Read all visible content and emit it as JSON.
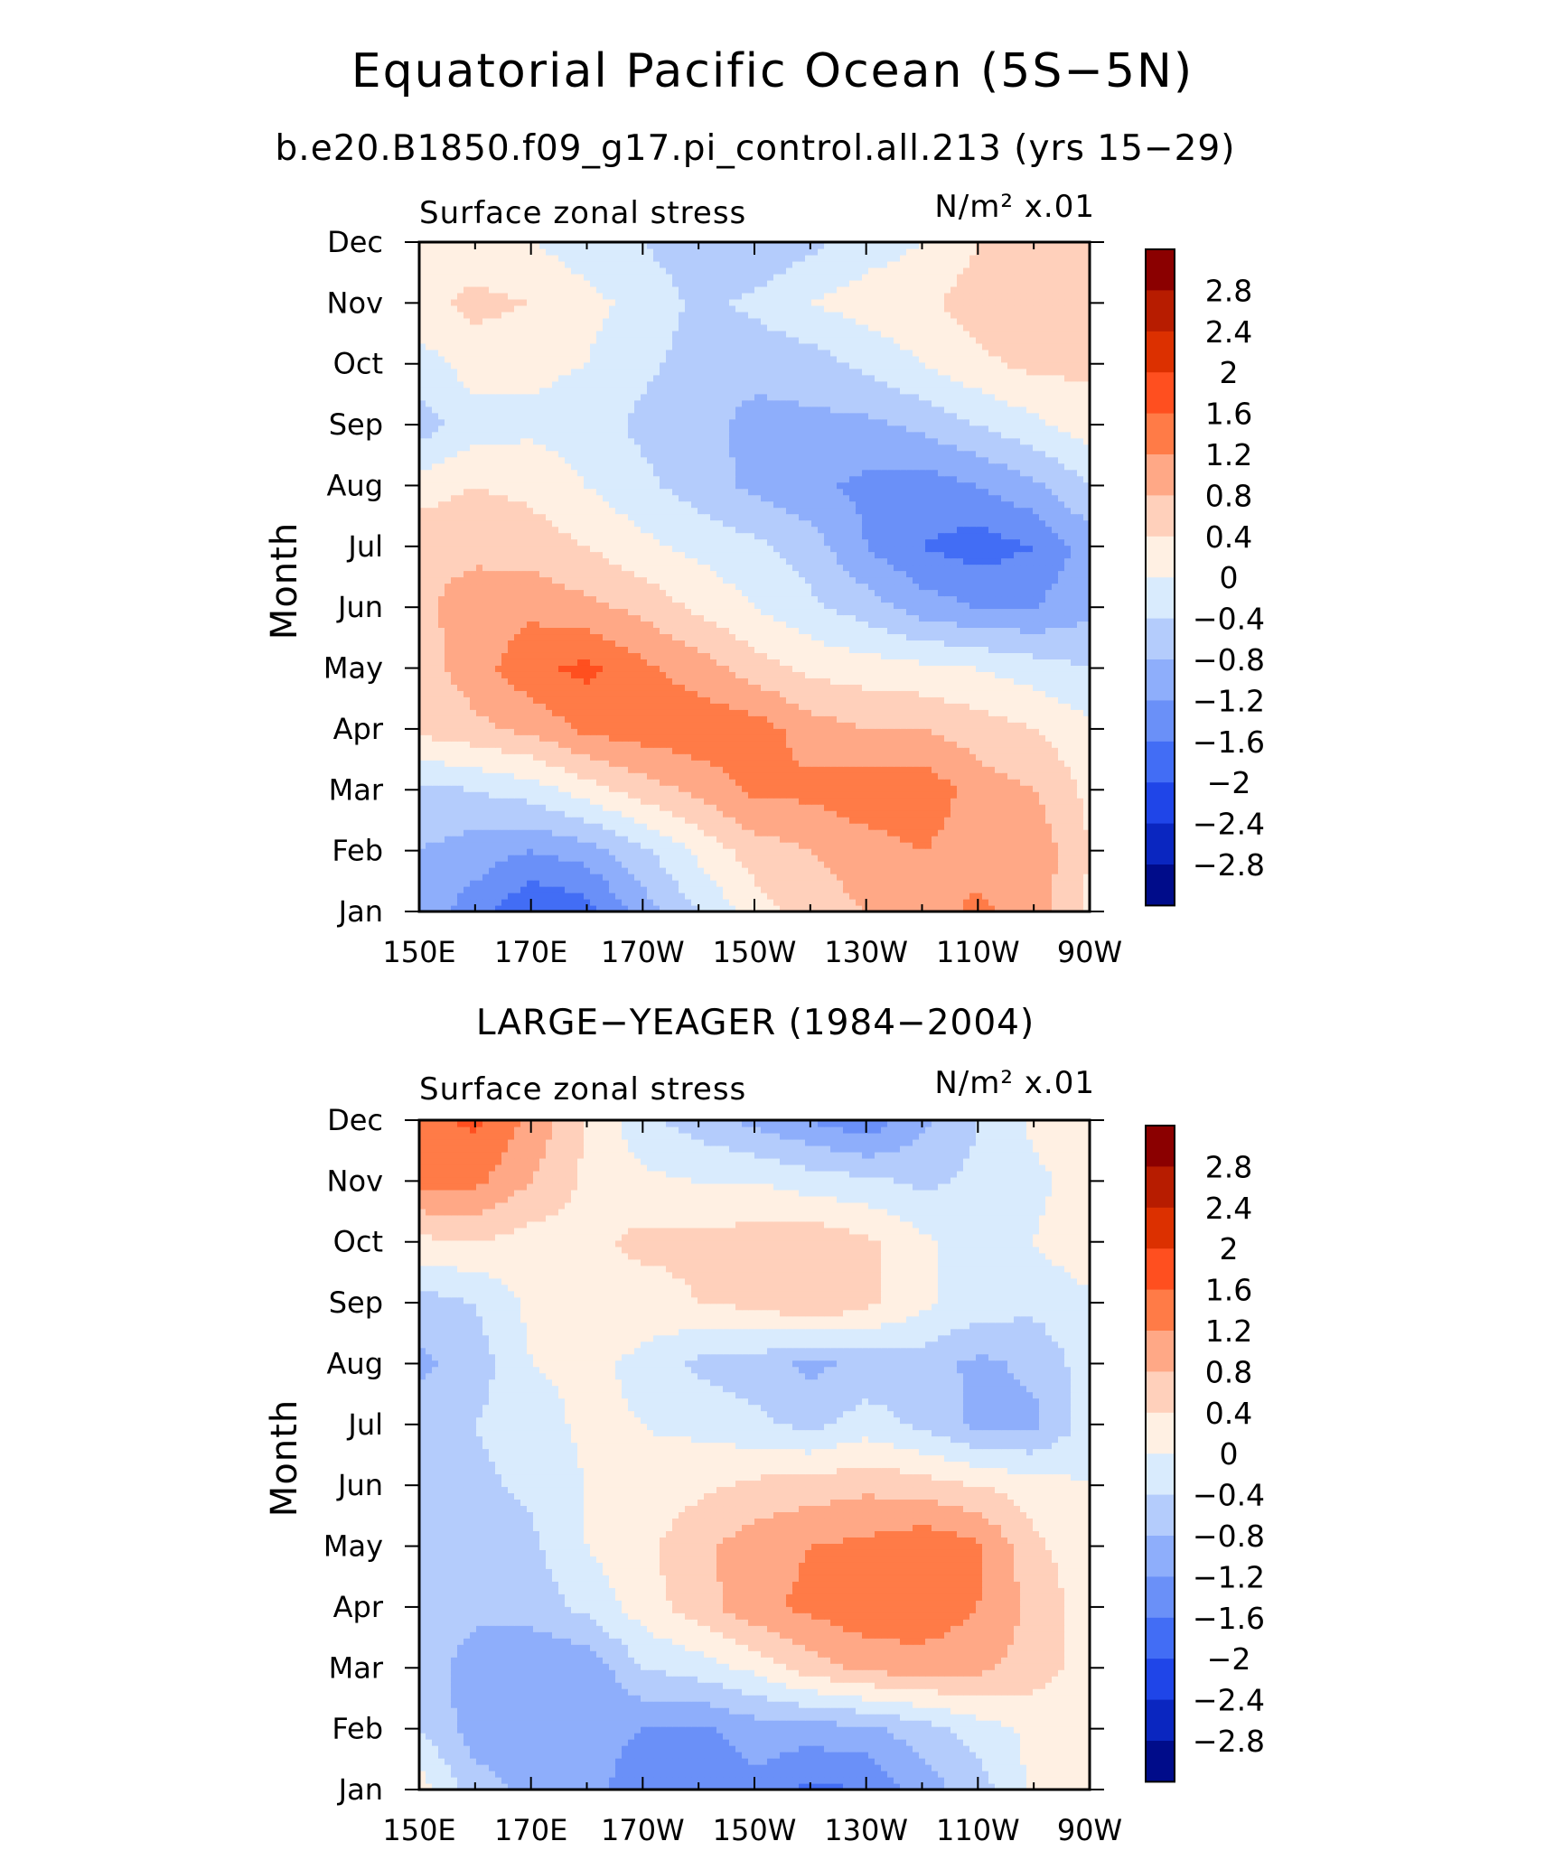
{
  "figure": {
    "title": "Equatorial Pacific Ocean (5S−5N)"
  },
  "colorbar": {
    "levels": [
      "2.8",
      "2.4",
      "2",
      "1.6",
      "1.2",
      "0.8",
      "0.4",
      "0",
      "−0.4",
      "−0.8",
      "−1.2",
      "−1.6",
      "−2",
      "−2.4",
      "−2.8"
    ],
    "colors": [
      "#8b0000",
      "#b71c00",
      "#dc3000",
      "#ff4f1f",
      "#ff7b47",
      "#ffa886",
      "#ffd0bb",
      "#fff0e3",
      "#d9ebfd",
      "#b4ccfc",
      "#8eaefb",
      "#6a90f8",
      "#426df5",
      "#1f45e8",
      "#0a26c0",
      "#000c8a"
    ]
  },
  "chart_data": [
    {
      "type": "heatmap",
      "subtitle": "b.e20.B1850.f09_g17.pi_control.all.213 (yrs 15−29)",
      "left_label": "Surface zonal stress",
      "right_label": "N/m² x.01",
      "ylabel": "Month",
      "xlabel": "",
      "x_ticks": [
        "150E",
        "170E",
        "170W",
        "150W",
        "130W",
        "110W",
        "90W"
      ],
      "y_ticks": [
        "Jan",
        "Feb",
        "Mar",
        "Apr",
        "May",
        "Jun",
        "Jul",
        "Aug",
        "Sep",
        "Oct",
        "Nov",
        "Dec"
      ],
      "x_range": [
        150,
        270
      ],
      "x_grid": [
        150,
        160,
        170,
        180,
        190,
        200,
        210,
        220,
        230,
        240,
        250,
        260,
        270
      ],
      "y_grid": [
        "Jan",
        "Feb",
        "Mar",
        "Apr",
        "May",
        "Jun",
        "Jul",
        "Aug",
        "Sep",
        "Oct",
        "Nov",
        "Dec"
      ],
      "values": [
        [
          -1.0,
          -1.4,
          -2.0,
          -1.8,
          -1.0,
          -0.4,
          0.2,
          0.6,
          0.8,
          1.0,
          1.3,
          1.0,
          0.3
        ],
        [
          -0.8,
          -1.0,
          -1.2,
          -1.0,
          -0.5,
          0.1,
          0.6,
          0.8,
          1.0,
          1.2,
          1.0,
          1.1,
          0.4
        ],
        [
          -0.5,
          -0.4,
          -0.2,
          0.2,
          0.6,
          0.9,
          1.3,
          1.3,
          1.5,
          1.5,
          1.0,
          0.8,
          0.3
        ],
        [
          0.5,
          0.7,
          0.9,
          1.3,
          1.4,
          1.5,
          1.4,
          1.0,
          0.8,
          0.8,
          0.6,
          0.4,
          0.1
        ],
        [
          0.6,
          1.0,
          1.5,
          1.7,
          1.3,
          1.0,
          0.6,
          0.3,
          0.2,
          0.1,
          0.0,
          -0.2,
          -0.4
        ],
        [
          0.7,
          1.0,
          1.1,
          0.9,
          0.7,
          0.3,
          0.0,
          -0.3,
          -0.6,
          -1.0,
          -1.2,
          -1.2,
          -0.9
        ],
        [
          0.7,
          0.7,
          0.6,
          0.4,
          0.1,
          -0.1,
          -0.3,
          -0.6,
          -1.2,
          -1.6,
          -1.8,
          -1.6,
          -1.0
        ],
        [
          0.2,
          0.4,
          0.3,
          0.0,
          -0.3,
          -0.6,
          -0.9,
          -1.1,
          -1.3,
          -1.4,
          -1.2,
          -0.9,
          -0.4
        ],
        [
          -0.6,
          -0.2,
          -0.1,
          -0.2,
          -0.5,
          -0.7,
          -0.9,
          -0.9,
          -0.9,
          -0.7,
          -0.4,
          -0.1,
          0.2
        ],
        [
          -0.2,
          0.2,
          0.1,
          0.0,
          -0.3,
          -0.6,
          -0.7,
          -0.6,
          -0.3,
          0.0,
          0.3,
          0.5,
          0.5
        ],
        [
          0.3,
          0.5,
          0.4,
          0.1,
          -0.1,
          -0.5,
          -0.3,
          0.0,
          0.2,
          0.3,
          0.6,
          0.8,
          0.7
        ],
        [
          0.1,
          0.2,
          0.0,
          -0.2,
          -0.4,
          -0.7,
          -0.8,
          -0.5,
          -0.2,
          0.0,
          0.4,
          0.6,
          0.6
        ]
      ]
    },
    {
      "type": "heatmap",
      "subtitle": "LARGE−YEAGER (1984−2004)",
      "left_label": "Surface zonal stress",
      "right_label": "N/m² x.01",
      "ylabel": "Month",
      "xlabel": "",
      "x_ticks": [
        "150E",
        "170E",
        "170W",
        "150W",
        "130W",
        "110W",
        "90W"
      ],
      "y_ticks": [
        "Jan",
        "Feb",
        "Mar",
        "Apr",
        "May",
        "Jun",
        "Jul",
        "Aug",
        "Sep",
        "Oct",
        "Nov",
        "Dec"
      ],
      "x_range": [
        150,
        270
      ],
      "x_grid": [
        150,
        160,
        170,
        180,
        190,
        200,
        210,
        220,
        230,
        240,
        250,
        260,
        270
      ],
      "y_grid": [
        "Jan",
        "Feb",
        "Mar",
        "Apr",
        "May",
        "Jun",
        "Jul",
        "Aug",
        "Sep",
        "Oct",
        "Nov",
        "Dec"
      ],
      "values": [
        [
          0.2,
          -0.6,
          -0.9,
          -1.0,
          -1.5,
          -1.6,
          -1.3,
          -1.7,
          -1.6,
          -1.0,
          -0.6,
          0.1,
          0.2
        ],
        [
          -0.4,
          -1.0,
          -1.1,
          -1.0,
          -1.2,
          -1.3,
          -1.0,
          -1.0,
          -0.9,
          -0.6,
          -0.2,
          0.1,
          0.3
        ],
        [
          -0.6,
          -1.0,
          -1.2,
          -1.1,
          -0.4,
          -0.2,
          0.1,
          0.6,
          0.9,
          1.0,
          0.9,
          0.6,
          0.2
        ],
        [
          -0.5,
          -0.7,
          -0.6,
          -0.3,
          0.2,
          0.6,
          1.1,
          1.3,
          1.5,
          1.5,
          1.2,
          0.7,
          0.2
        ],
        [
          -0.4,
          -0.7,
          -0.5,
          0.0,
          0.3,
          0.7,
          1.0,
          1.2,
          1.3,
          1.5,
          1.3,
          0.5,
          0.1
        ],
        [
          -0.4,
          -0.5,
          -0.3,
          0.0,
          0.1,
          0.3,
          0.5,
          0.6,
          0.7,
          0.6,
          0.4,
          0.2,
          0.0
        ],
        [
          -0.5,
          -0.4,
          -0.2,
          0.1,
          0.0,
          -0.1,
          -0.3,
          -0.5,
          -0.2,
          -0.5,
          -0.9,
          -0.9,
          -0.2
        ],
        [
          -0.9,
          -0.6,
          0.0,
          0.1,
          -0.1,
          -0.5,
          -0.6,
          -0.9,
          -0.7,
          -0.6,
          -0.9,
          -0.7,
          -0.2
        ],
        [
          -0.6,
          -0.4,
          0.1,
          0.3,
          0.2,
          0.4,
          0.5,
          0.8,
          0.5,
          0.1,
          -0.2,
          -0.3,
          -0.1
        ],
        [
          0.3,
          0.4,
          0.2,
          0.3,
          0.5,
          0.5,
          0.6,
          0.7,
          0.5,
          0.1,
          -0.3,
          0.0,
          0.3
        ],
        [
          1.3,
          1.3,
          0.8,
          0.3,
          0.1,
          0.0,
          0.0,
          -0.2,
          -0.3,
          -0.5,
          -0.3,
          -0.1,
          0.2
        ],
        [
          1.4,
          1.7,
          1.1,
          0.4,
          -0.3,
          -0.6,
          -0.9,
          -1.2,
          -1.5,
          -0.9,
          -0.4,
          0.1,
          0.2
        ]
      ]
    }
  ]
}
